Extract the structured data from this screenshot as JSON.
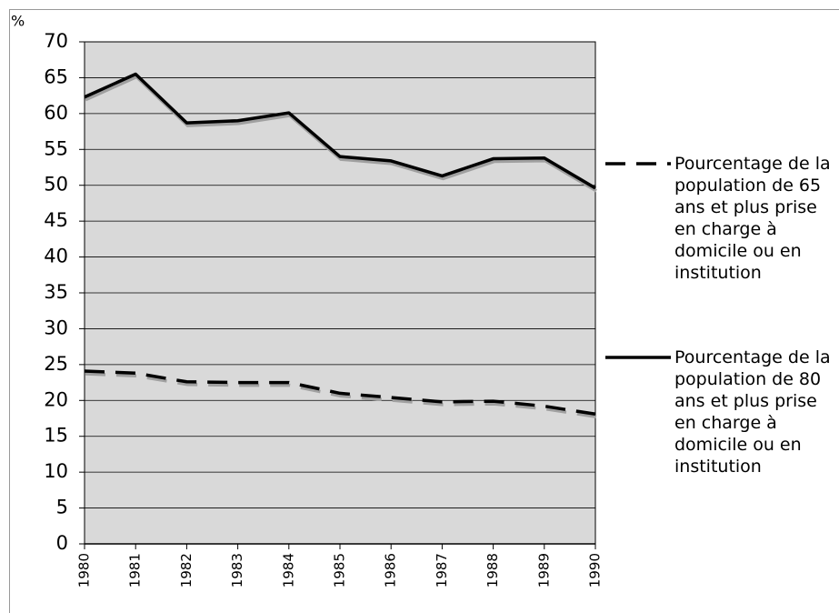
{
  "chart_data": {
    "type": "line",
    "y_label": "%",
    "categories": [
      "1980",
      "1981",
      "1982",
      "1983",
      "1984",
      "1985",
      "1986",
      "1987",
      "1988",
      "1989",
      "1990"
    ],
    "series": [
      {
        "name": "Pourcentage de la population de 65 ans et plus prise en charge à domicile ou en institution",
        "color": "#000000",
        "line_style": "dashed",
        "values": [
          24.1,
          23.8,
          22.6,
          22.5,
          22.5,
          21.0,
          20.4,
          19.8,
          19.9,
          19.2,
          18.1
        ]
      },
      {
        "name": "Pourcentage de la population de 80 ans et plus prise en charge à domicile ou en institution",
        "color": "#000000",
        "line_style": "solid",
        "values": [
          62.3,
          65.5,
          58.7,
          59.0,
          60.1,
          54.0,
          53.4,
          51.3,
          53.7,
          53.8,
          49.6
        ]
      }
    ],
    "ylim": [
      0,
      70
    ],
    "yticks": [
      0,
      5,
      10,
      15,
      20,
      25,
      30,
      35,
      40,
      45,
      50,
      55,
      60,
      65,
      70
    ],
    "grid": true,
    "legend": "right",
    "plot_background": "#d9d9d9"
  }
}
